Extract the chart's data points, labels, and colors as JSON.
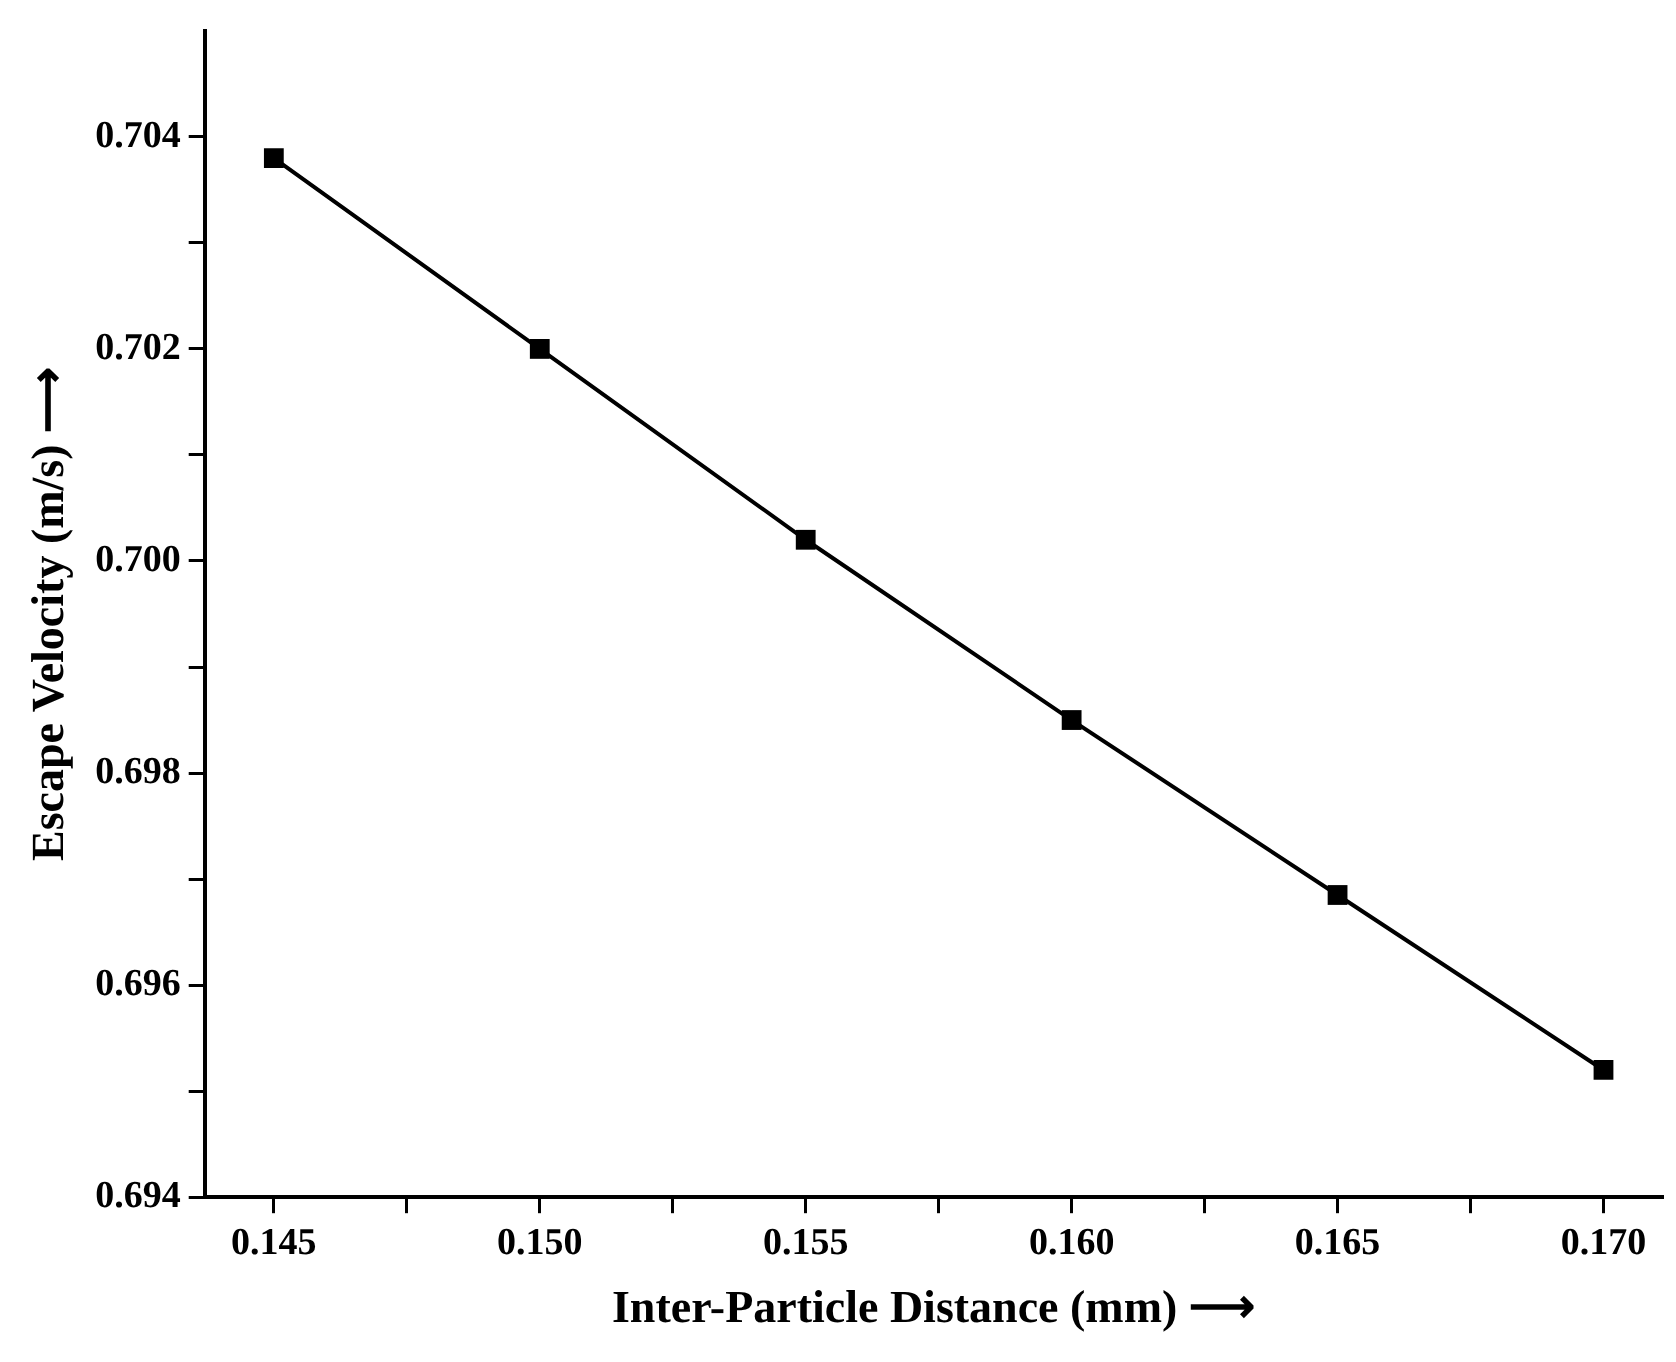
{
  "chart_data": {
    "type": "line",
    "xlabel": "Inter-Particle Distance (mm) ⟶",
    "ylabel": "Escape Velocity (m/s) ⟶",
    "x": [
      0.145,
      0.15,
      0.155,
      0.16,
      0.165,
      0.17
    ],
    "series": [
      {
        "color": "#000000",
        "values": [
          0.7038,
          0.702,
          0.7002,
          0.6985,
          0.69685,
          0.6952
        ]
      }
    ],
    "xlim": [
      0.1437,
      0.1711
    ],
    "ylim": [
      0.694,
      0.705
    ],
    "xticks": [
      0.145,
      {
        "value": 0.1475,
        "label": null
      },
      {
        "value": 0.15,
        "label": "0.150"
      },
      {
        "value": 0.1525,
        "label": null
      },
      0.155,
      {
        "value": 0.1575,
        "label": null
      },
      {
        "value": 0.16,
        "label": "0.160"
      },
      {
        "value": 0.1625,
        "label": null
      },
      0.165,
      {
        "value": 0.1675,
        "label": null
      },
      {
        "value": 0.17,
        "label": "0.170"
      }
    ],
    "yticks": [
      0.694,
      {
        "value": 0.695,
        "label": null
      },
      0.696,
      {
        "value": 0.697,
        "label": null
      },
      0.698,
      {
        "value": 0.699,
        "label": null
      },
      {
        "value": 0.7,
        "label": "0.700"
      },
      {
        "value": 0.701,
        "label": null
      },
      0.702,
      {
        "value": 0.703,
        "label": null
      },
      0.704
    ],
    "grid": false,
    "legend": false,
    "marker": "square",
    "line_style": "solid"
  }
}
